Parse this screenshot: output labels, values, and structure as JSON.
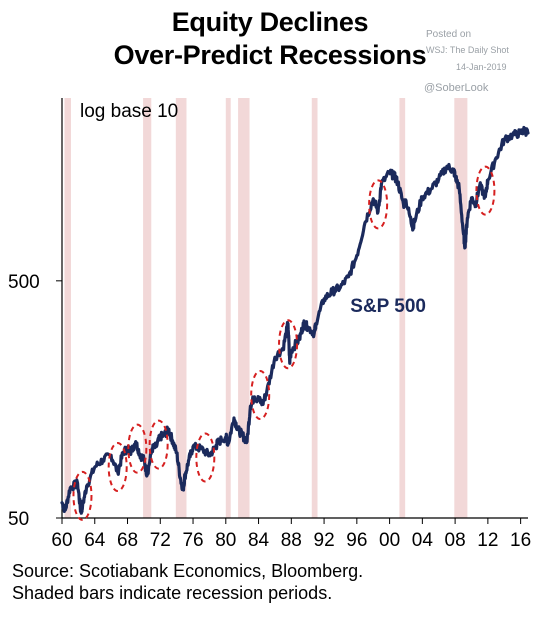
{
  "title_line1": "Equity Declines",
  "title_line2": "Over-Predict Recessions",
  "watermark": {
    "posted_on": "Posted on",
    "source": "WSJ: The Daily Shot",
    "date": "14-Jan-2019",
    "handle": "@SoberLook"
  },
  "source_line1": "Source: Scotiabank Economics, Bloomberg.",
  "source_line2": "Shaded bars indicate recession periods.",
  "chart_data": {
    "type": "line",
    "title": "Equity Declines Over-Predict Recessions",
    "scale_note": "log base 10",
    "yscale": "log",
    "x_tick_labels": [
      "60",
      "64",
      "68",
      "72",
      "76",
      "80",
      "84",
      "88",
      "92",
      "96",
      "00",
      "04",
      "08",
      "12",
      "16"
    ],
    "y_tick_labels": [
      "50",
      "500"
    ],
    "xlim": [
      1960,
      2016.9
    ],
    "ylim": [
      50,
      2950
    ],
    "grid": false,
    "series": [
      {
        "name": "S&P 500",
        "color": "#1b2a5c",
        "x": [
          1960.0,
          1960.4,
          1961.0,
          1961.9,
          1962.3,
          1962.5,
          1963.0,
          1964.0,
          1965.0,
          1966.0,
          1966.8,
          1967.5,
          1968.0,
          1968.5,
          1969.0,
          1969.5,
          1970.0,
          1970.4,
          1971.0,
          1971.5,
          1972.0,
          1972.5,
          1973.0,
          1973.5,
          1974.0,
          1974.5,
          1974.8,
          1975.0,
          1975.5,
          1976.0,
          1977.0,
          1978.0,
          1978.8,
          1979.0,
          1980.0,
          1980.3,
          1981.0,
          1981.5,
          1982.0,
          1982.6,
          1983.0,
          1983.5,
          1984.0,
          1984.5,
          1985.0,
          1986.0,
          1987.0,
          1987.6,
          1987.8,
          1988.0,
          1989.0,
          1989.5,
          1990.0,
          1990.8,
          1991.0,
          1992.0,
          1993.0,
          1994.0,
          1995.0,
          1996.0,
          1997.0,
          1998.0,
          1998.6,
          1999.0,
          2000.0,
          2000.6,
          2001.0,
          2001.7,
          2002.0,
          2002.8,
          2003.0,
          2004.0,
          2005.0,
          2006.0,
          2007.0,
          2007.8,
          2008.0,
          2008.5,
          2009.0,
          2009.2,
          2009.5,
          2010.0,
          2010.5,
          2011.0,
          2011.7,
          2012.0,
          2013.0,
          2014.0,
          2015.0,
          2016.0,
          2016.5,
          2016.9
        ],
        "y": [
          58,
          54,
          67,
          70,
          53,
          56,
          68,
          82,
          88,
          92,
          78,
          95,
          98,
          96,
          105,
          93,
          88,
          76,
          98,
          100,
          110,
          112,
          118,
          106,
          94,
          72,
          66,
          75,
          88,
          100,
          98,
          92,
          100,
          104,
          110,
          103,
          132,
          118,
          112,
          105,
          148,
          162,
          158,
          152,
          170,
          238,
          260,
          330,
          228,
          255,
          285,
          330,
          320,
          300,
          330,
          420,
          450,
          470,
          520,
          640,
          880,
          1110,
          980,
          1280,
          1430,
          1380,
          1300,
          1050,
          1090,
          840,
          880,
          1130,
          1210,
          1340,
          1520,
          1460,
          1390,
          1230,
          800,
          700,
          920,
          1120,
          1050,
          1260,
          1130,
          1330,
          1650,
          1970,
          2060,
          2100,
          2160,
          2100
        ]
      }
    ],
    "recessions": [
      [
        1960.3,
        1961.1
      ],
      [
        1969.9,
        1970.9
      ],
      [
        1973.9,
        1975.2
      ],
      [
        1980.0,
        1980.6
      ],
      [
        1981.5,
        1982.9
      ],
      [
        1990.5,
        1991.2
      ],
      [
        2001.2,
        2001.9
      ],
      [
        2007.9,
        2009.5
      ]
    ],
    "highlighted_declines": [
      [
        1962.5,
        62
      ],
      [
        1966.8,
        82
      ],
      [
        1969.2,
        98
      ],
      [
        1971.8,
        102
      ],
      [
        1977.5,
        90
      ],
      [
        1984.2,
        165
      ],
      [
        1987.6,
        270
      ],
      [
        1998.6,
        1050
      ],
      [
        2011.7,
        1200
      ]
    ]
  }
}
